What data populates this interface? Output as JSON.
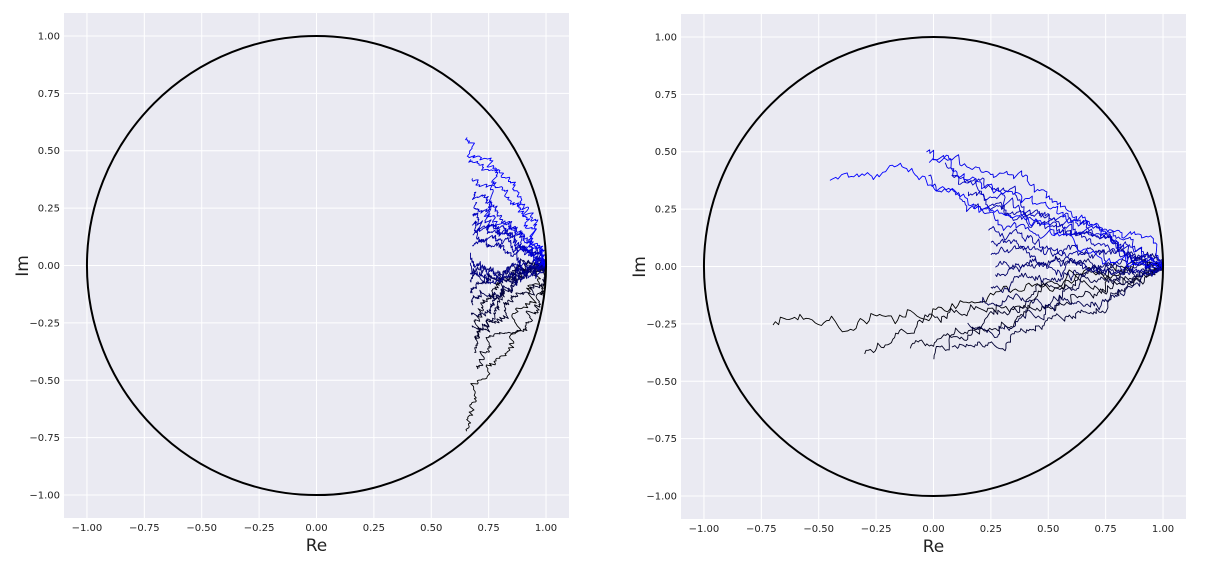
{
  "chart_data": [
    {
      "type": "line",
      "title": "",
      "xlabel": "Re",
      "ylabel": "Im",
      "xlim": [
        -1.1,
        1.1
      ],
      "ylim": [
        -1.1,
        1.1
      ],
      "xticks": [
        "−1.00",
        "−0.75",
        "−0.50",
        "−0.25",
        "0.00",
        "0.25",
        "0.50",
        "0.75",
        "1.00"
      ],
      "yticks": [
        "−1.00",
        "−0.75",
        "−0.50",
        "−0.25",
        "0.00",
        "0.25",
        "0.50",
        "0.75",
        "1.00"
      ],
      "grid": true,
      "unit_circle": {
        "center": [
          0,
          0
        ],
        "radius": 1,
        "color": "#000000"
      },
      "series_style": {
        "count": 21,
        "color_start": "#000000",
        "color_end": "#0000ff"
      },
      "series_endpoints": [
        {
          "start": [
            1.0,
            0.0
          ],
          "end": [
            0.65,
            -0.72
          ]
        },
        {
          "start": [
            1.0,
            0.0
          ],
          "end": [
            0.7,
            -0.45
          ]
        },
        {
          "start": [
            1.0,
            0.0
          ],
          "end": [
            0.69,
            -0.38
          ]
        },
        {
          "start": [
            1.0,
            0.0
          ],
          "end": [
            0.69,
            -0.32
          ]
        },
        {
          "start": [
            1.0,
            0.0
          ],
          "end": [
            0.68,
            -0.27
          ]
        },
        {
          "start": [
            1.0,
            0.0
          ],
          "end": [
            0.68,
            -0.22
          ]
        },
        {
          "start": [
            1.0,
            0.0
          ],
          "end": [
            0.68,
            -0.17
          ]
        },
        {
          "start": [
            1.0,
            0.0
          ],
          "end": [
            0.67,
            -0.12
          ]
        },
        {
          "start": [
            1.0,
            0.0
          ],
          "end": [
            0.67,
            -0.07
          ]
        },
        {
          "start": [
            1.0,
            0.0
          ],
          "end": [
            0.67,
            -0.03
          ]
        },
        {
          "start": [
            1.0,
            0.0
          ],
          "end": [
            0.67,
            0.01
          ]
        },
        {
          "start": [
            1.0,
            0.0
          ],
          "end": [
            0.67,
            0.05
          ]
        },
        {
          "start": [
            1.0,
            0.0
          ],
          "end": [
            0.68,
            0.09
          ]
        },
        {
          "start": [
            1.0,
            0.0
          ],
          "end": [
            0.68,
            0.13
          ]
        },
        {
          "start": [
            1.0,
            0.0
          ],
          "end": [
            0.68,
            0.18
          ]
        },
        {
          "start": [
            1.0,
            0.0
          ],
          "end": [
            0.68,
            0.22
          ]
        },
        {
          "start": [
            1.0,
            0.0
          ],
          "end": [
            0.69,
            0.27
          ]
        },
        {
          "start": [
            1.0,
            0.0
          ],
          "end": [
            0.69,
            0.32
          ]
        },
        {
          "start": [
            1.0,
            0.0
          ],
          "end": [
            0.68,
            0.38
          ]
        },
        {
          "start": [
            1.0,
            0.0
          ],
          "end": [
            0.67,
            0.46
          ]
        },
        {
          "start": [
            1.0,
            0.0
          ],
          "end": [
            0.66,
            0.56
          ]
        }
      ]
    },
    {
      "type": "line",
      "title": "",
      "xlabel": "Re",
      "ylabel": "Im",
      "xlim": [
        -1.1,
        1.1
      ],
      "ylim": [
        -1.1,
        1.1
      ],
      "xticks": [
        "−1.00",
        "−0.75",
        "−0.50",
        "−0.25",
        "0.00",
        "0.25",
        "0.50",
        "0.75",
        "1.00"
      ],
      "yticks": [
        "−1.00",
        "−0.75",
        "−0.50",
        "−0.25",
        "0.00",
        "0.25",
        "0.50",
        "0.75",
        "1.00"
      ],
      "grid": true,
      "unit_circle": {
        "center": [
          0,
          0
        ],
        "radius": 1,
        "color": "#000000"
      },
      "series_style": {
        "count": 21,
        "color_start": "#000000",
        "color_end": "#0000ff"
      },
      "series_endpoints": [
        {
          "start": [
            1.0,
            0.0
          ],
          "end": [
            -0.7,
            -0.25
          ]
        },
        {
          "start": [
            1.0,
            0.0
          ],
          "end": [
            -0.3,
            -0.38
          ]
        },
        {
          "start": [
            1.0,
            0.0
          ],
          "end": [
            -0.1,
            -0.36
          ]
        },
        {
          "start": [
            1.0,
            0.0
          ],
          "end": [
            0.0,
            -0.4
          ]
        },
        {
          "start": [
            1.0,
            0.0
          ],
          "end": [
            0.08,
            -0.35
          ]
        },
        {
          "start": [
            1.0,
            0.0
          ],
          "end": [
            0.15,
            -0.25
          ]
        },
        {
          "start": [
            1.0,
            0.0
          ],
          "end": [
            0.2,
            -0.15
          ]
        },
        {
          "start": [
            1.0,
            0.0
          ],
          "end": [
            0.25,
            -0.09
          ]
        },
        {
          "start": [
            1.0,
            0.0
          ],
          "end": [
            0.27,
            -0.04
          ]
        },
        {
          "start": [
            1.0,
            0.0
          ],
          "end": [
            0.27,
            0.0
          ]
        },
        {
          "start": [
            1.0,
            0.0
          ],
          "end": [
            0.25,
            0.05
          ]
        },
        {
          "start": [
            1.0,
            0.0
          ],
          "end": [
            0.25,
            0.1
          ]
        },
        {
          "start": [
            1.0,
            0.0
          ],
          "end": [
            0.24,
            0.16
          ]
        },
        {
          "start": [
            1.0,
            0.0
          ],
          "end": [
            0.18,
            0.27
          ]
        },
        {
          "start": [
            1.0,
            0.0
          ],
          "end": [
            0.15,
            0.32
          ]
        },
        {
          "start": [
            1.0,
            0.0
          ],
          "end": [
            0.08,
            0.4
          ]
        },
        {
          "start": [
            1.0,
            0.0
          ],
          "end": [
            0.05,
            0.45
          ]
        },
        {
          "start": [
            1.0,
            0.0
          ],
          "end": [
            -0.02,
            0.4
          ]
        },
        {
          "start": [
            1.0,
            0.0
          ],
          "end": [
            -0.03,
            0.5
          ]
        },
        {
          "start": [
            1.0,
            0.0
          ],
          "end": [
            -0.02,
            0.45
          ]
        },
        {
          "start": [
            1.0,
            0.0
          ],
          "end": [
            -0.45,
            0.38
          ]
        }
      ]
    }
  ]
}
